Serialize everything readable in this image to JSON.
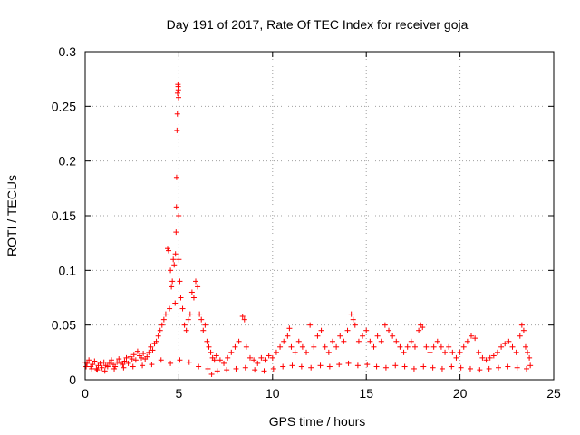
{
  "chart_data": {
    "type": "scatter",
    "title": "Day 191 of 2017, Rate Of TEC Index for receiver goja",
    "xlabel": "GPS time / hours",
    "ylabel": "ROTI / TECUs",
    "xlim": [
      0,
      25
    ],
    "ylim": [
      0,
      0.3
    ],
    "x_ticks": [
      0,
      5,
      10,
      15,
      20,
      25
    ],
    "x_tick_labels": [
      "0",
      "5",
      "10",
      "15",
      "20",
      "25"
    ],
    "y_ticks": [
      0,
      0.05,
      0.1,
      0.15,
      0.2,
      0.25,
      0.3
    ],
    "y_tick_labels": [
      "0",
      "0.05",
      "0.1",
      "0.15",
      "0.2",
      "0.25",
      "0.3"
    ],
    "grid": true,
    "marker": "+",
    "color": "#ff0000",
    "series": [
      {
        "name": "ROTI",
        "points": [
          [
            0.0,
            0.016
          ],
          [
            0.1,
            0.015
          ],
          [
            0.2,
            0.018
          ],
          [
            0.3,
            0.012
          ],
          [
            0.4,
            0.014
          ],
          [
            0.5,
            0.017
          ],
          [
            0.6,
            0.01
          ],
          [
            0.7,
            0.013
          ],
          [
            0.8,
            0.015
          ],
          [
            0.9,
            0.011
          ],
          [
            1.0,
            0.016
          ],
          [
            1.1,
            0.013
          ],
          [
            1.2,
            0.012
          ],
          [
            1.3,
            0.015
          ],
          [
            1.4,
            0.018
          ],
          [
            1.5,
            0.014
          ],
          [
            1.6,
            0.012
          ],
          [
            1.7,
            0.016
          ],
          [
            1.8,
            0.019
          ],
          [
            1.9,
            0.015
          ],
          [
            2.0,
            0.014
          ],
          [
            2.1,
            0.017
          ],
          [
            2.2,
            0.02
          ],
          [
            2.3,
            0.015
          ],
          [
            2.4,
            0.021
          ],
          [
            2.5,
            0.019
          ],
          [
            2.6,
            0.023
          ],
          [
            2.7,
            0.018
          ],
          [
            2.8,
            0.026
          ],
          [
            2.9,
            0.022
          ],
          [
            3.0,
            0.02
          ],
          [
            3.1,
            0.024
          ],
          [
            3.2,
            0.019
          ],
          [
            3.3,
            0.021
          ],
          [
            3.4,
            0.025
          ],
          [
            3.5,
            0.03
          ],
          [
            3.6,
            0.027
          ],
          [
            3.7,
            0.033
          ],
          [
            3.8,
            0.035
          ],
          [
            3.9,
            0.04
          ],
          [
            4.0,
            0.045
          ],
          [
            4.1,
            0.05
          ],
          [
            4.2,
            0.055
          ],
          [
            4.3,
            0.06
          ],
          [
            4.4,
            0.12
          ],
          [
            4.45,
            0.118
          ],
          [
            4.5,
            0.065
          ],
          [
            4.55,
            0.1
          ],
          [
            4.6,
            0.085
          ],
          [
            4.65,
            0.09
          ],
          [
            4.7,
            0.11
          ],
          [
            4.75,
            0.105
          ],
          [
            4.8,
            0.07
          ],
          [
            4.82,
            0.115
          ],
          [
            4.85,
            0.135
          ],
          [
            4.87,
            0.158
          ],
          [
            4.88,
            0.185
          ],
          [
            4.9,
            0.228
          ],
          [
            4.92,
            0.243
          ],
          [
            4.93,
            0.262
          ],
          [
            4.95,
            0.27
          ],
          [
            4.96,
            0.268
          ],
          [
            4.97,
            0.265
          ],
          [
            4.98,
            0.258
          ],
          [
            4.99,
            0.15
          ],
          [
            5.0,
            0.11
          ],
          [
            5.05,
            0.09
          ],
          [
            5.1,
            0.075
          ],
          [
            5.2,
            0.065
          ],
          [
            5.3,
            0.05
          ],
          [
            5.4,
            0.045
          ],
          [
            5.5,
            0.055
          ],
          [
            5.6,
            0.06
          ],
          [
            5.7,
            0.08
          ],
          [
            5.8,
            0.075
          ],
          [
            5.9,
            0.09
          ],
          [
            6.0,
            0.085
          ],
          [
            6.1,
            0.06
          ],
          [
            6.2,
            0.055
          ],
          [
            6.3,
            0.045
          ],
          [
            6.4,
            0.05
          ],
          [
            6.5,
            0.035
          ],
          [
            6.6,
            0.03
          ],
          [
            6.7,
            0.025
          ],
          [
            6.8,
            0.02
          ],
          [
            6.9,
            0.018
          ],
          [
            7.0,
            0.022
          ],
          [
            7.2,
            0.018
          ],
          [
            7.4,
            0.015
          ],
          [
            7.6,
            0.02
          ],
          [
            7.8,
            0.025
          ],
          [
            8.0,
            0.03
          ],
          [
            8.2,
            0.035
          ],
          [
            8.4,
            0.058
          ],
          [
            8.5,
            0.055
          ],
          [
            8.6,
            0.03
          ],
          [
            8.8,
            0.02
          ],
          [
            9.0,
            0.018
          ],
          [
            9.2,
            0.015
          ],
          [
            9.4,
            0.02
          ],
          [
            9.6,
            0.018
          ],
          [
            9.8,
            0.022
          ],
          [
            10.0,
            0.02
          ],
          [
            10.2,
            0.025
          ],
          [
            10.4,
            0.03
          ],
          [
            10.6,
            0.035
          ],
          [
            10.8,
            0.04
          ],
          [
            10.9,
            0.047
          ],
          [
            11.0,
            0.03
          ],
          [
            11.2,
            0.025
          ],
          [
            11.4,
            0.035
          ],
          [
            11.6,
            0.03
          ],
          [
            11.8,
            0.025
          ],
          [
            12.0,
            0.05
          ],
          [
            12.2,
            0.03
          ],
          [
            12.4,
            0.04
          ],
          [
            12.6,
            0.045
          ],
          [
            12.8,
            0.03
          ],
          [
            13.0,
            0.025
          ],
          [
            13.2,
            0.035
          ],
          [
            13.4,
            0.03
          ],
          [
            13.6,
            0.04
          ],
          [
            13.8,
            0.035
          ],
          [
            14.0,
            0.045
          ],
          [
            14.2,
            0.06
          ],
          [
            14.3,
            0.055
          ],
          [
            14.4,
            0.05
          ],
          [
            14.6,
            0.035
          ],
          [
            14.8,
            0.04
          ],
          [
            15.0,
            0.045
          ],
          [
            15.2,
            0.035
          ],
          [
            15.4,
            0.03
          ],
          [
            15.6,
            0.04
          ],
          [
            15.8,
            0.035
          ],
          [
            16.0,
            0.05
          ],
          [
            16.2,
            0.045
          ],
          [
            16.4,
            0.04
          ],
          [
            16.6,
            0.035
          ],
          [
            16.8,
            0.03
          ],
          [
            17.0,
            0.025
          ],
          [
            17.2,
            0.03
          ],
          [
            17.4,
            0.035
          ],
          [
            17.6,
            0.03
          ],
          [
            17.8,
            0.045
          ],
          [
            17.9,
            0.05
          ],
          [
            18.0,
            0.048
          ],
          [
            18.2,
            0.03
          ],
          [
            18.4,
            0.025
          ],
          [
            18.6,
            0.03
          ],
          [
            18.8,
            0.035
          ],
          [
            19.0,
            0.03
          ],
          [
            19.2,
            0.025
          ],
          [
            19.4,
            0.03
          ],
          [
            19.6,
            0.025
          ],
          [
            19.8,
            0.02
          ],
          [
            20.0,
            0.025
          ],
          [
            20.2,
            0.03
          ],
          [
            20.4,
            0.035
          ],
          [
            20.6,
            0.04
          ],
          [
            20.8,
            0.038
          ],
          [
            21.0,
            0.025
          ],
          [
            21.2,
            0.02
          ],
          [
            21.4,
            0.018
          ],
          [
            21.6,
            0.02
          ],
          [
            21.8,
            0.022
          ],
          [
            22.0,
            0.025
          ],
          [
            22.2,
            0.03
          ],
          [
            22.4,
            0.033
          ],
          [
            22.6,
            0.035
          ],
          [
            22.8,
            0.03
          ],
          [
            23.0,
            0.025
          ],
          [
            23.2,
            0.04
          ],
          [
            23.3,
            0.05
          ],
          [
            23.4,
            0.045
          ],
          [
            23.5,
            0.03
          ],
          [
            23.6,
            0.025
          ],
          [
            23.7,
            0.02
          ],
          [
            0.05,
            0.012
          ],
          [
            0.35,
            0.01
          ],
          [
            0.65,
            0.009
          ],
          [
            1.05,
            0.008
          ],
          [
            1.55,
            0.01
          ],
          [
            2.05,
            0.011
          ],
          [
            2.55,
            0.012
          ],
          [
            3.05,
            0.013
          ],
          [
            3.55,
            0.014
          ],
          [
            4.05,
            0.018
          ],
          [
            4.55,
            0.015
          ],
          [
            5.05,
            0.018
          ],
          [
            5.55,
            0.016
          ],
          [
            6.05,
            0.012
          ],
          [
            6.55,
            0.01
          ],
          [
            6.75,
            0.005
          ],
          [
            7.05,
            0.008
          ],
          [
            7.55,
            0.009
          ],
          [
            8.05,
            0.01
          ],
          [
            8.55,
            0.011
          ],
          [
            9.05,
            0.009
          ],
          [
            9.55,
            0.008
          ],
          [
            10.05,
            0.01
          ],
          [
            10.55,
            0.012
          ],
          [
            11.05,
            0.013
          ],
          [
            11.55,
            0.012
          ],
          [
            12.05,
            0.011
          ],
          [
            12.55,
            0.013
          ],
          [
            13.05,
            0.012
          ],
          [
            13.55,
            0.014
          ],
          [
            14.05,
            0.015
          ],
          [
            14.55,
            0.013
          ],
          [
            15.05,
            0.014
          ],
          [
            15.55,
            0.012
          ],
          [
            16.05,
            0.011
          ],
          [
            16.55,
            0.013
          ],
          [
            17.05,
            0.012
          ],
          [
            17.55,
            0.01
          ],
          [
            18.05,
            0.012
          ],
          [
            18.55,
            0.011
          ],
          [
            19.05,
            0.01
          ],
          [
            19.55,
            0.012
          ],
          [
            20.05,
            0.011
          ],
          [
            20.55,
            0.01
          ],
          [
            21.05,
            0.009
          ],
          [
            21.55,
            0.01
          ],
          [
            22.05,
            0.011
          ],
          [
            22.55,
            0.012
          ],
          [
            23.05,
            0.011
          ],
          [
            23.55,
            0.01
          ],
          [
            23.75,
            0.013
          ]
        ]
      }
    ]
  }
}
